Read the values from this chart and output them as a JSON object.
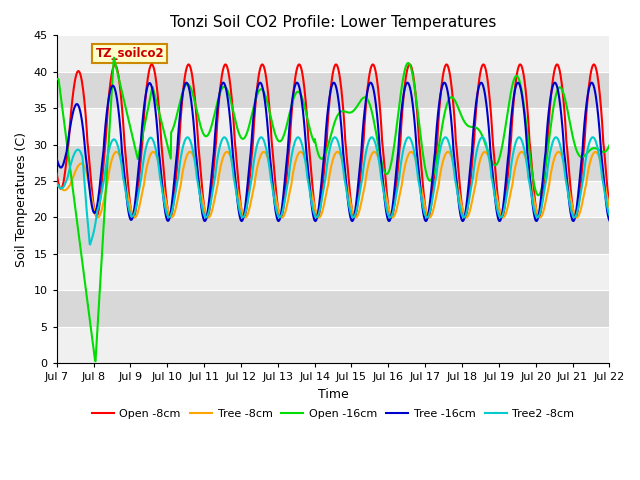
{
  "title": "Tonzi Soil CO2 Profile: Lower Temperatures",
  "xlabel": "Time",
  "ylabel": "Soil Temperatures (C)",
  "ylim": [
    0,
    45
  ],
  "yticks": [
    0,
    5,
    10,
    15,
    20,
    25,
    30,
    35,
    40,
    45
  ],
  "background_color": "#ffffff",
  "plot_bg_light": "#f0f0f0",
  "plot_bg_dark": "#d8d8d8",
  "label_box_text": "TZ_soilco2",
  "label_box_facecolor": "#ffffcc",
  "label_box_edgecolor": "#cc8800",
  "series": [
    {
      "name": "Open -8cm",
      "color": "#ff0000",
      "lw": 1.5
    },
    {
      "name": "Tree -8cm",
      "color": "#ffa500",
      "lw": 1.5
    },
    {
      "name": "Open -16cm",
      "color": "#00dd00",
      "lw": 1.5
    },
    {
      "name": "Tree -16cm",
      "color": "#0000cc",
      "lw": 1.5
    },
    {
      "name": "Tree2 -8cm",
      "color": "#00cccc",
      "lw": 1.5
    }
  ],
  "xtick_labels": [
    "Jul 7",
    "Jul 8",
    "Jul 9",
    "Jul 10",
    "Jul 11",
    "Jul 12",
    "Jul 13",
    "Jul 14",
    "Jul 15",
    "Jul 16",
    "Jul 17",
    "Jul 18",
    "Jul 19",
    "Jul 20",
    "Jul 21",
    "Jul 22"
  ],
  "legend_loc": "lower center",
  "legend_ncol": 5,
  "title_fontsize": 11,
  "axis_label_fontsize": 9,
  "tick_fontsize": 8
}
